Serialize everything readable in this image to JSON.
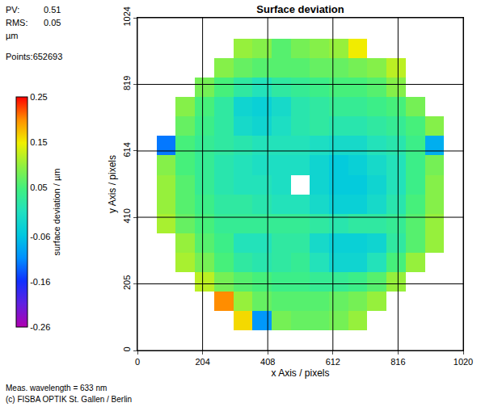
{
  "chart_data": {
    "type": "heatmap",
    "title": "Surface deviation",
    "xlabel": "x Axis / pixels",
    "ylabel": "y Axis / pixels",
    "xlim": [
      0,
      1020
    ],
    "ylim": [
      0,
      1024
    ],
    "xticks": [
      0,
      204,
      408,
      612,
      816,
      1020
    ],
    "yticks": [
      0,
      205,
      410,
      614,
      819,
      1024
    ],
    "grid": true,
    "x": [
      30,
      90,
      150,
      210,
      270,
      330,
      390,
      450,
      510,
      570,
      630,
      690,
      750,
      810,
      870,
      930,
      990
    ],
    "y": [
      30,
      90,
      150,
      210,
      270,
      330,
      390,
      450,
      510,
      570,
      630,
      690,
      750,
      810,
      870,
      930,
      990
    ],
    "z": [
      [
        null,
        null,
        null,
        null,
        null,
        null,
        null,
        null,
        null,
        null,
        null,
        null,
        null,
        null,
        null,
        null,
        null
      ],
      [
        null,
        null,
        null,
        null,
        null,
        0.16,
        -0.1,
        0.08,
        0.07,
        0.07,
        0.08,
        0.1,
        null,
        null,
        null,
        null,
        null
      ],
      [
        null,
        null,
        null,
        null,
        0.2,
        0.1,
        0.07,
        0.06,
        0.06,
        0.06,
        0.07,
        0.08,
        0.1,
        null,
        null,
        null,
        null
      ],
      [
        null,
        null,
        null,
        0.12,
        0.08,
        0.06,
        0.05,
        0.04,
        0.04,
        0.03,
        0.03,
        0.04,
        0.06,
        0.1,
        null,
        null,
        null
      ],
      [
        null,
        null,
        0.11,
        0.08,
        0.05,
        0.02,
        0.01,
        0.02,
        0.03,
        0.0,
        -0.03,
        -0.03,
        0.0,
        0.05,
        0.1,
        null,
        null
      ],
      [
        null,
        null,
        0.1,
        0.06,
        0.04,
        0.0,
        0.0,
        0.02,
        0.02,
        -0.02,
        -0.04,
        -0.04,
        -0.03,
        0.02,
        0.06,
        0.1,
        null
      ],
      [
        null,
        0.11,
        0.07,
        0.05,
        0.03,
        0.03,
        0.03,
        0.03,
        0.03,
        0.02,
        0.01,
        0.02,
        0.02,
        0.03,
        0.06,
        0.1,
        null
      ],
      [
        null,
        0.1,
        0.06,
        0.04,
        0.02,
        0.02,
        0.01,
        0.0,
        0.0,
        -0.02,
        -0.04,
        -0.04,
        -0.02,
        0.01,
        0.05,
        0.09,
        null
      ],
      [
        null,
        0.1,
        0.06,
        0.03,
        0.01,
        0.0,
        0.0,
        -0.01,
        null,
        -0.03,
        -0.05,
        -0.05,
        -0.03,
        0.0,
        0.04,
        0.09,
        null
      ],
      [
        null,
        0.09,
        0.05,
        0.03,
        0.01,
        0.0,
        -0.01,
        -0.01,
        -0.01,
        -0.03,
        -0.05,
        -0.04,
        -0.02,
        0.0,
        0.04,
        0.08,
        null
      ],
      [
        null,
        -0.12,
        0.05,
        0.03,
        0.02,
        0.01,
        0.0,
        0.0,
        0.0,
        -0.01,
        -0.02,
        -0.02,
        0.0,
        0.01,
        0.04,
        -0.08,
        null
      ],
      [
        null,
        null,
        0.07,
        0.04,
        0.02,
        -0.02,
        -0.03,
        -0.01,
        0.01,
        0.02,
        0.01,
        0.01,
        0.02,
        0.03,
        0.05,
        0.09,
        null
      ],
      [
        null,
        null,
        0.09,
        0.05,
        0.02,
        -0.03,
        -0.04,
        -0.02,
        0.01,
        0.02,
        0.03,
        0.03,
        0.04,
        0.05,
        0.08,
        null,
        null
      ],
      [
        null,
        null,
        null,
        0.08,
        0.05,
        0.02,
        0.0,
        0.02,
        0.03,
        0.04,
        0.05,
        0.05,
        0.06,
        0.09,
        null,
        null,
        null
      ],
      [
        null,
        null,
        null,
        null,
        0.09,
        0.07,
        0.06,
        0.06,
        0.06,
        0.07,
        0.07,
        0.08,
        0.09,
        0.12,
        null,
        null,
        null
      ],
      [
        null,
        null,
        null,
        null,
        null,
        0.1,
        0.09,
        0.06,
        0.08,
        0.09,
        0.1,
        0.15,
        null,
        null,
        null,
        null,
        null
      ],
      [
        null,
        null,
        null,
        null,
        null,
        null,
        null,
        null,
        null,
        null,
        null,
        null,
        null,
        null,
        null,
        null,
        null
      ]
    ],
    "colorbar": {
      "title": "surface deviation / µm",
      "range": [
        -0.26,
        0.25
      ],
      "ticks": [
        -0.26,
        -0.16,
        -0.06,
        0.05,
        0.15,
        0.25
      ]
    },
    "stats": [
      {
        "label": "PV:",
        "value": 0.51
      },
      {
        "label": "RMS:",
        "value": 0.05
      }
    ],
    "unit": "µm",
    "points": "Points:652693",
    "footer": [
      "Meas. wavelength = 633 nm",
      "(c) FISBA OPTIK St. Gallen / Berlin"
    ]
  }
}
